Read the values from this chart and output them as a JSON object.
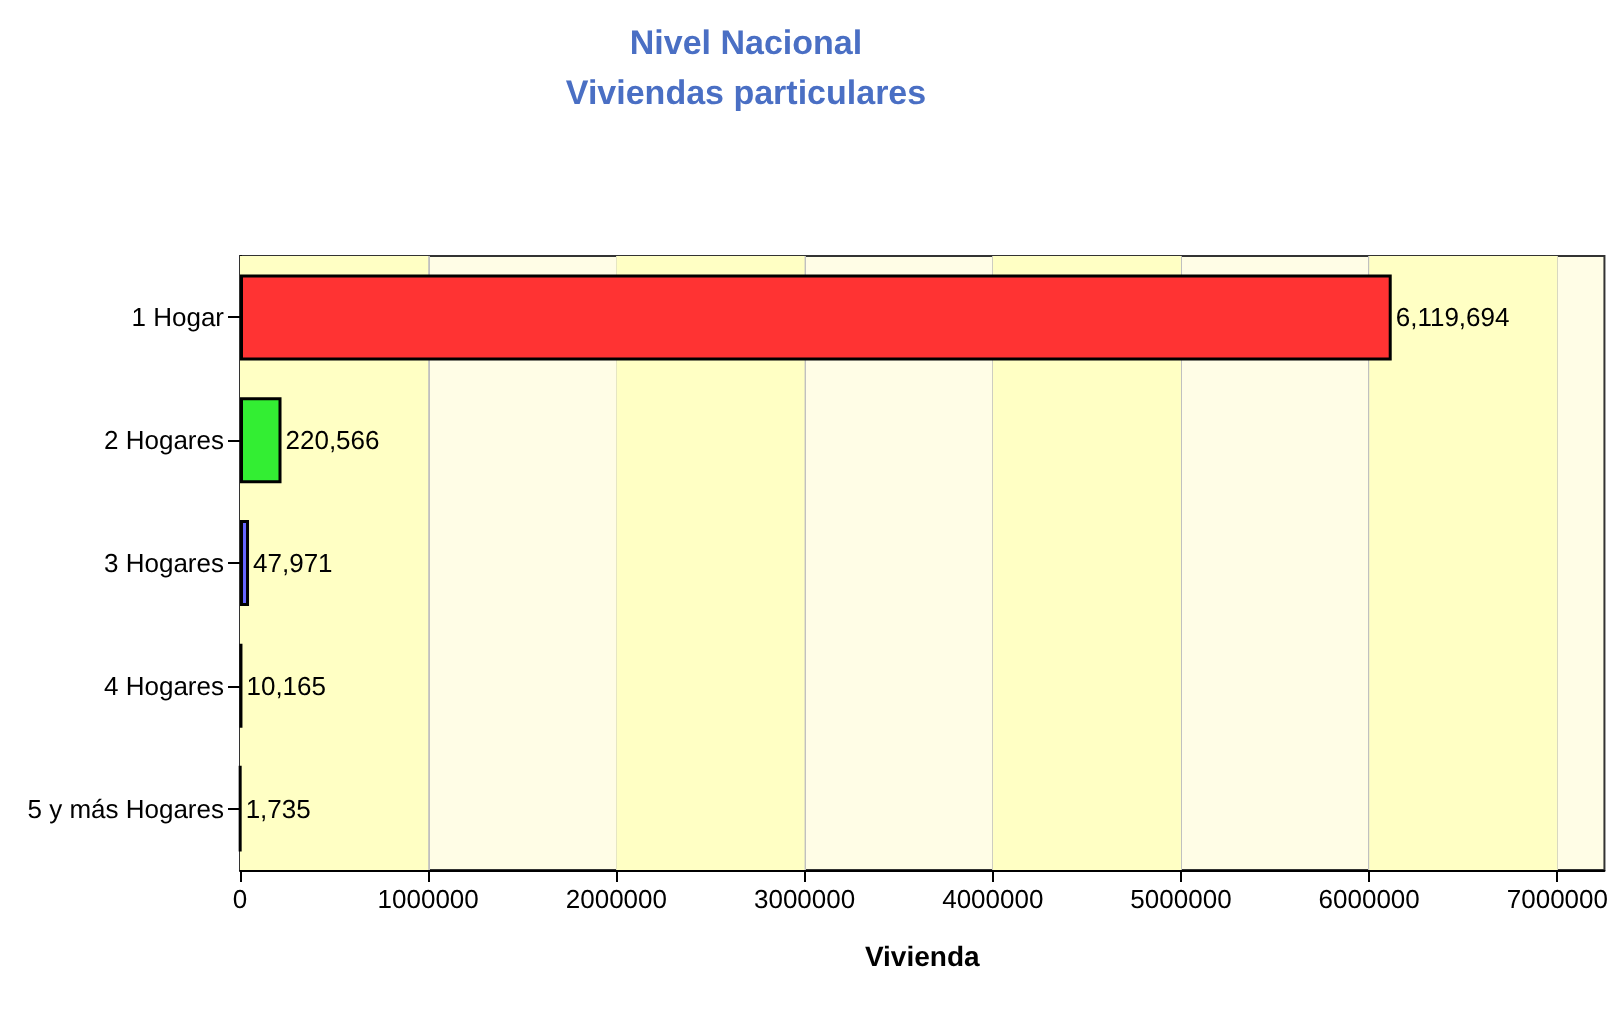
{
  "chart_data": {
    "type": "bar",
    "orientation": "horizontal",
    "title": "Nivel Nacional",
    "subtitle": "Viviendas particulares",
    "xlabel": "Vivienda",
    "categories": [
      "1 Hogar",
      "2 Hogares",
      "3 Hogares",
      "4 Hogares",
      "5 y más Hogares"
    ],
    "values": [
      6119694,
      220566,
      47971,
      10165,
      1735
    ],
    "value_labels": [
      "6,119,694",
      "220,566",
      "47,971",
      "10,165",
      "1,735"
    ],
    "colors": [
      "#ff3333",
      "#33ee33",
      "#6666ff",
      "#000000",
      "#000000"
    ],
    "xlim": [
      0,
      7250000
    ],
    "xticks": [
      0,
      1000000,
      2000000,
      3000000,
      4000000,
      5000000,
      6000000,
      7000000
    ],
    "bands": [
      {
        "axis": "x",
        "from": 0,
        "to": 1000000,
        "color": "#ffffc4"
      },
      {
        "axis": "x",
        "from": 2000000,
        "to": 3000000,
        "color": "#ffffc4"
      },
      {
        "axis": "x",
        "from": 4000000,
        "to": 5000000,
        "color": "#ffffc4"
      },
      {
        "axis": "x",
        "from": 6000000,
        "to": 7000000,
        "color": "#ffffc4"
      }
    ],
    "grid": "x"
  }
}
